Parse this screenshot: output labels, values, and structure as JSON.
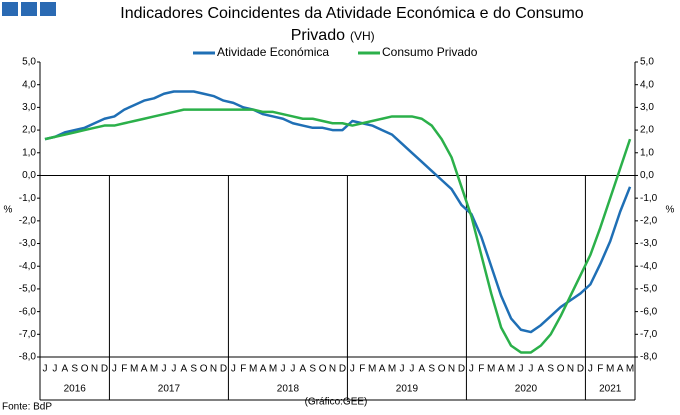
{
  "chart_data": {
    "type": "line",
    "title": "Indicadores Coincidentes da Atividade Económica e do Consumo",
    "title_line2": "Privado",
    "subtitle": "(VH)",
    "ylabel": "%",
    "y2label": "%",
    "source": "Fonte: BdP",
    "credit": "(Gráfico:GEE)",
    "categories": [
      "J",
      "J",
      "A",
      "S",
      "O",
      "N",
      "D",
      "J",
      "F",
      "M",
      "A",
      "M",
      "J",
      "J",
      "A",
      "S",
      "O",
      "N",
      "D",
      "J",
      "F",
      "M",
      "A",
      "M",
      "J",
      "J",
      "A",
      "S",
      "O",
      "N",
      "D",
      "J",
      "F",
      "M",
      "A",
      "M",
      "J",
      "J",
      "A",
      "S",
      "O",
      "N",
      "D",
      "J",
      "F",
      "M",
      "A",
      "M",
      "J",
      "J",
      "A",
      "S",
      "O",
      "N",
      "D",
      "J",
      "F",
      "M",
      "A",
      "M"
    ],
    "year_groups": [
      {
        "label": "2016",
        "count": 7
      },
      {
        "label": "2017",
        "count": 12
      },
      {
        "label": "2018",
        "count": 12
      },
      {
        "label": "2019",
        "count": 12
      },
      {
        "label": "2020",
        "count": 12
      },
      {
        "label": "2021",
        "count": 5
      }
    ],
    "series": [
      {
        "name": "Atividade Económica",
        "color": "#1f6fb5",
        "values": [
          1.6,
          1.7,
          1.9,
          2.0,
          2.1,
          2.3,
          2.5,
          2.6,
          2.9,
          3.1,
          3.3,
          3.4,
          3.6,
          3.7,
          3.7,
          3.7,
          3.6,
          3.5,
          3.3,
          3.2,
          3.0,
          2.9,
          2.7,
          2.6,
          2.5,
          2.3,
          2.2,
          2.1,
          2.1,
          2.0,
          2.0,
          2.4,
          2.3,
          2.2,
          2.0,
          1.8,
          1.4,
          1.0,
          0.6,
          0.2,
          -0.2,
          -0.6,
          -1.3,
          -1.7,
          -2.7,
          -4.0,
          -5.3,
          -6.3,
          -6.8,
          -6.9,
          -6.6,
          -6.2,
          -5.8,
          -5.5,
          -5.2,
          -4.8,
          -3.9,
          -2.9,
          -1.6,
          -0.5
        ]
      },
      {
        "name": "Consumo Privado",
        "color": "#2bb04a",
        "values": [
          1.6,
          1.7,
          1.8,
          1.9,
          2.0,
          2.1,
          2.2,
          2.2,
          2.3,
          2.4,
          2.5,
          2.6,
          2.7,
          2.8,
          2.9,
          2.9,
          2.9,
          2.9,
          2.9,
          2.9,
          2.9,
          2.9,
          2.8,
          2.8,
          2.7,
          2.6,
          2.5,
          2.5,
          2.4,
          2.3,
          2.3,
          2.2,
          2.3,
          2.4,
          2.5,
          2.6,
          2.6,
          2.6,
          2.5,
          2.2,
          1.6,
          0.8,
          -0.5,
          -1.8,
          -3.5,
          -5.2,
          -6.7,
          -7.5,
          -7.8,
          -7.8,
          -7.5,
          -7.0,
          -6.2,
          -5.3,
          -4.4,
          -3.5,
          -2.3,
          -1.0,
          0.3,
          1.6
        ]
      }
    ],
    "ylim": [
      -8,
      5
    ],
    "yticks": [
      {
        "value": 5,
        "label": "5,0"
      },
      {
        "value": 4,
        "label": "4,0"
      },
      {
        "value": 3,
        "label": "3,0"
      },
      {
        "value": 2,
        "label": "2,0"
      },
      {
        "value": 1,
        "label": "1,0"
      },
      {
        "value": 0,
        "label": "0,0"
      },
      {
        "value": -1,
        "label": "-1,0"
      },
      {
        "value": -2,
        "label": "-2,0"
      },
      {
        "value": -3,
        "label": "-3,0"
      },
      {
        "value": -4,
        "label": "-4,0"
      },
      {
        "value": -5,
        "label": "-5,0"
      },
      {
        "value": -6,
        "label": "-6,0"
      },
      {
        "value": -7,
        "label": "-7,0"
      },
      {
        "value": -8,
        "label": "-8,0"
      }
    ],
    "y2lim": [
      -8,
      5
    ],
    "y2ticks": [
      {
        "value": 5,
        "label": "5,0"
      },
      {
        "value": 4,
        "label": "4,0"
      },
      {
        "value": 3,
        "label": "3,0"
      },
      {
        "value": 2,
        "label": "2,0"
      },
      {
        "value": 1,
        "label": "1,0"
      },
      {
        "value": 0,
        "label": "0,0"
      },
      {
        "value": -1,
        "label": "-1,0"
      },
      {
        "value": -2,
        "label": "-2,0"
      },
      {
        "value": -3,
        "label": "-3,0"
      },
      {
        "value": -4,
        "label": "-4,0"
      },
      {
        "value": -5,
        "label": "-5,0"
      },
      {
        "value": -6,
        "label": "-6,0"
      },
      {
        "value": -7,
        "label": "-7,0"
      },
      {
        "value": -8,
        "label": "-8,0"
      }
    ],
    "legend": "top"
  }
}
